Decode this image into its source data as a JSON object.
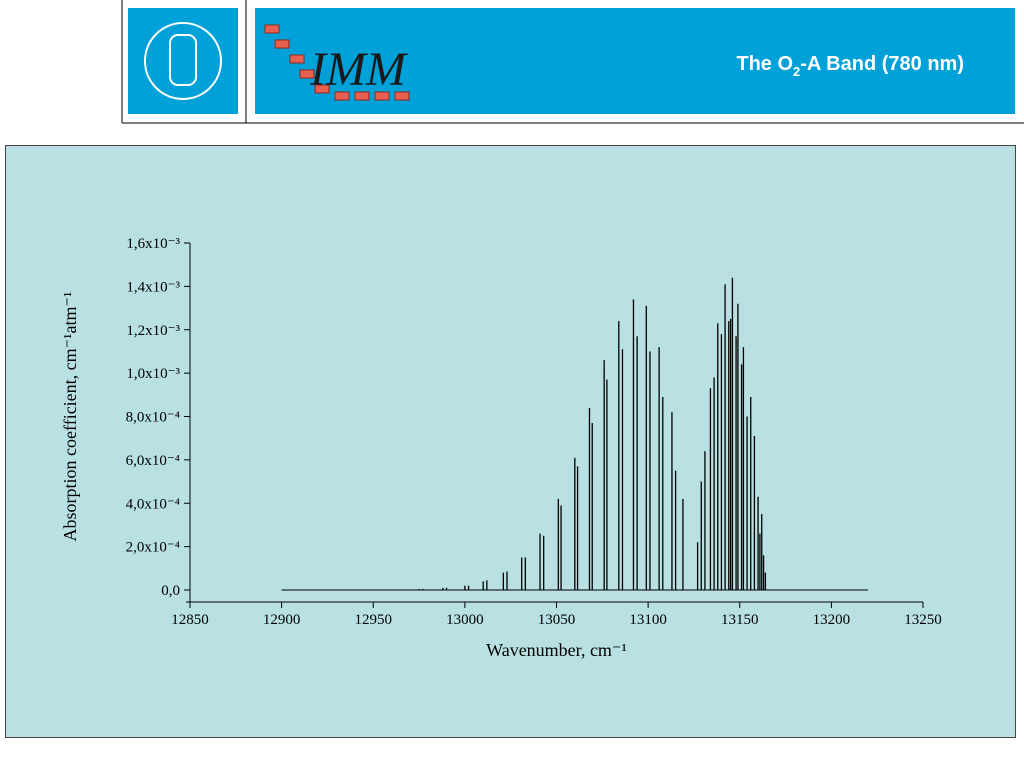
{
  "header": {
    "title_parts": [
      "The  O",
      "2",
      "-A Band (780 nm)"
    ],
    "logo_text": "IMM"
  },
  "chart_data": {
    "type": "stick",
    "x_label": "Wavenumber, cm⁻¹",
    "y_label": "Absorption coefficient, cm⁻¹atm⁻¹",
    "color": "#000000",
    "x": [
      12900,
      12975,
      12977,
      12988,
      12990,
      13000,
      13002,
      13010,
      13012,
      13021,
      13023,
      13031,
      13033,
      13041,
      13043,
      13051,
      13052.5,
      13060,
      13061.5,
      13068,
      13069.5,
      13076,
      13077.5,
      13084,
      13086,
      13092,
      13094,
      13099,
      13101,
      13106,
      13108,
      13113,
      13115,
      13119,
      13127,
      13129,
      13131,
      13134,
      13136,
      13138,
      13140,
      13142,
      13144,
      13145,
      13146,
      13148,
      13149,
      13151,
      13152,
      13154,
      13156,
      13158,
      13160,
      13161,
      13162,
      13163,
      13164,
      13220
    ],
    "values": [
      0,
      5e-06,
      5e-06,
      1e-05,
      1e-05,
      2e-05,
      2e-05,
      4e-05,
      4.5e-05,
      8e-05,
      8.5e-05,
      0.00015,
      0.00015,
      0.00026,
      0.00025,
      0.00042,
      0.00039,
      0.00061,
      0.00057,
      0.00084,
      0.00077,
      0.00106,
      0.00097,
      0.00124,
      0.00111,
      0.00134,
      0.00117,
      0.00131,
      0.0011,
      0.00112,
      0.00089,
      0.00082,
      0.00055,
      0.00042,
      0.00022,
      0.0005,
      0.00064,
      0.00093,
      0.00098,
      0.00123,
      0.00118,
      0.00141,
      0.00124,
      0.00125,
      0.00144,
      0.00117,
      0.00132,
      0.00104,
      0.00112,
      0.0008,
      0.00089,
      0.00071,
      0.00043,
      0.00026,
      0.00035,
      0.00016,
      8e-05,
      0
    ],
    "xlim": [
      12850,
      13250
    ],
    "xticks": [
      12850,
      12900,
      12950,
      13000,
      13050,
      13100,
      13150,
      13200,
      13250
    ],
    "ylim": [
      0,
      0.0016
    ],
    "yticks": [
      {
        "value": 0,
        "label": "0,0"
      },
      {
        "value": 0.0002,
        "label": "2,0x10⁻⁴"
      },
      {
        "value": 0.0004,
        "label": "4,0x10⁻⁴"
      },
      {
        "value": 0.0006,
        "label": "6,0x10⁻⁴"
      },
      {
        "value": 0.0008,
        "label": "8,0x10⁻⁴"
      },
      {
        "value": 0.001,
        "label": "1,0x10⁻³"
      },
      {
        "value": 0.0012,
        "label": "1,2x10⁻³"
      },
      {
        "value": 0.0014,
        "label": "1,4x10⁻³"
      },
      {
        "value": 0.0016,
        "label": "1,6x10⁻³"
      }
    ]
  }
}
